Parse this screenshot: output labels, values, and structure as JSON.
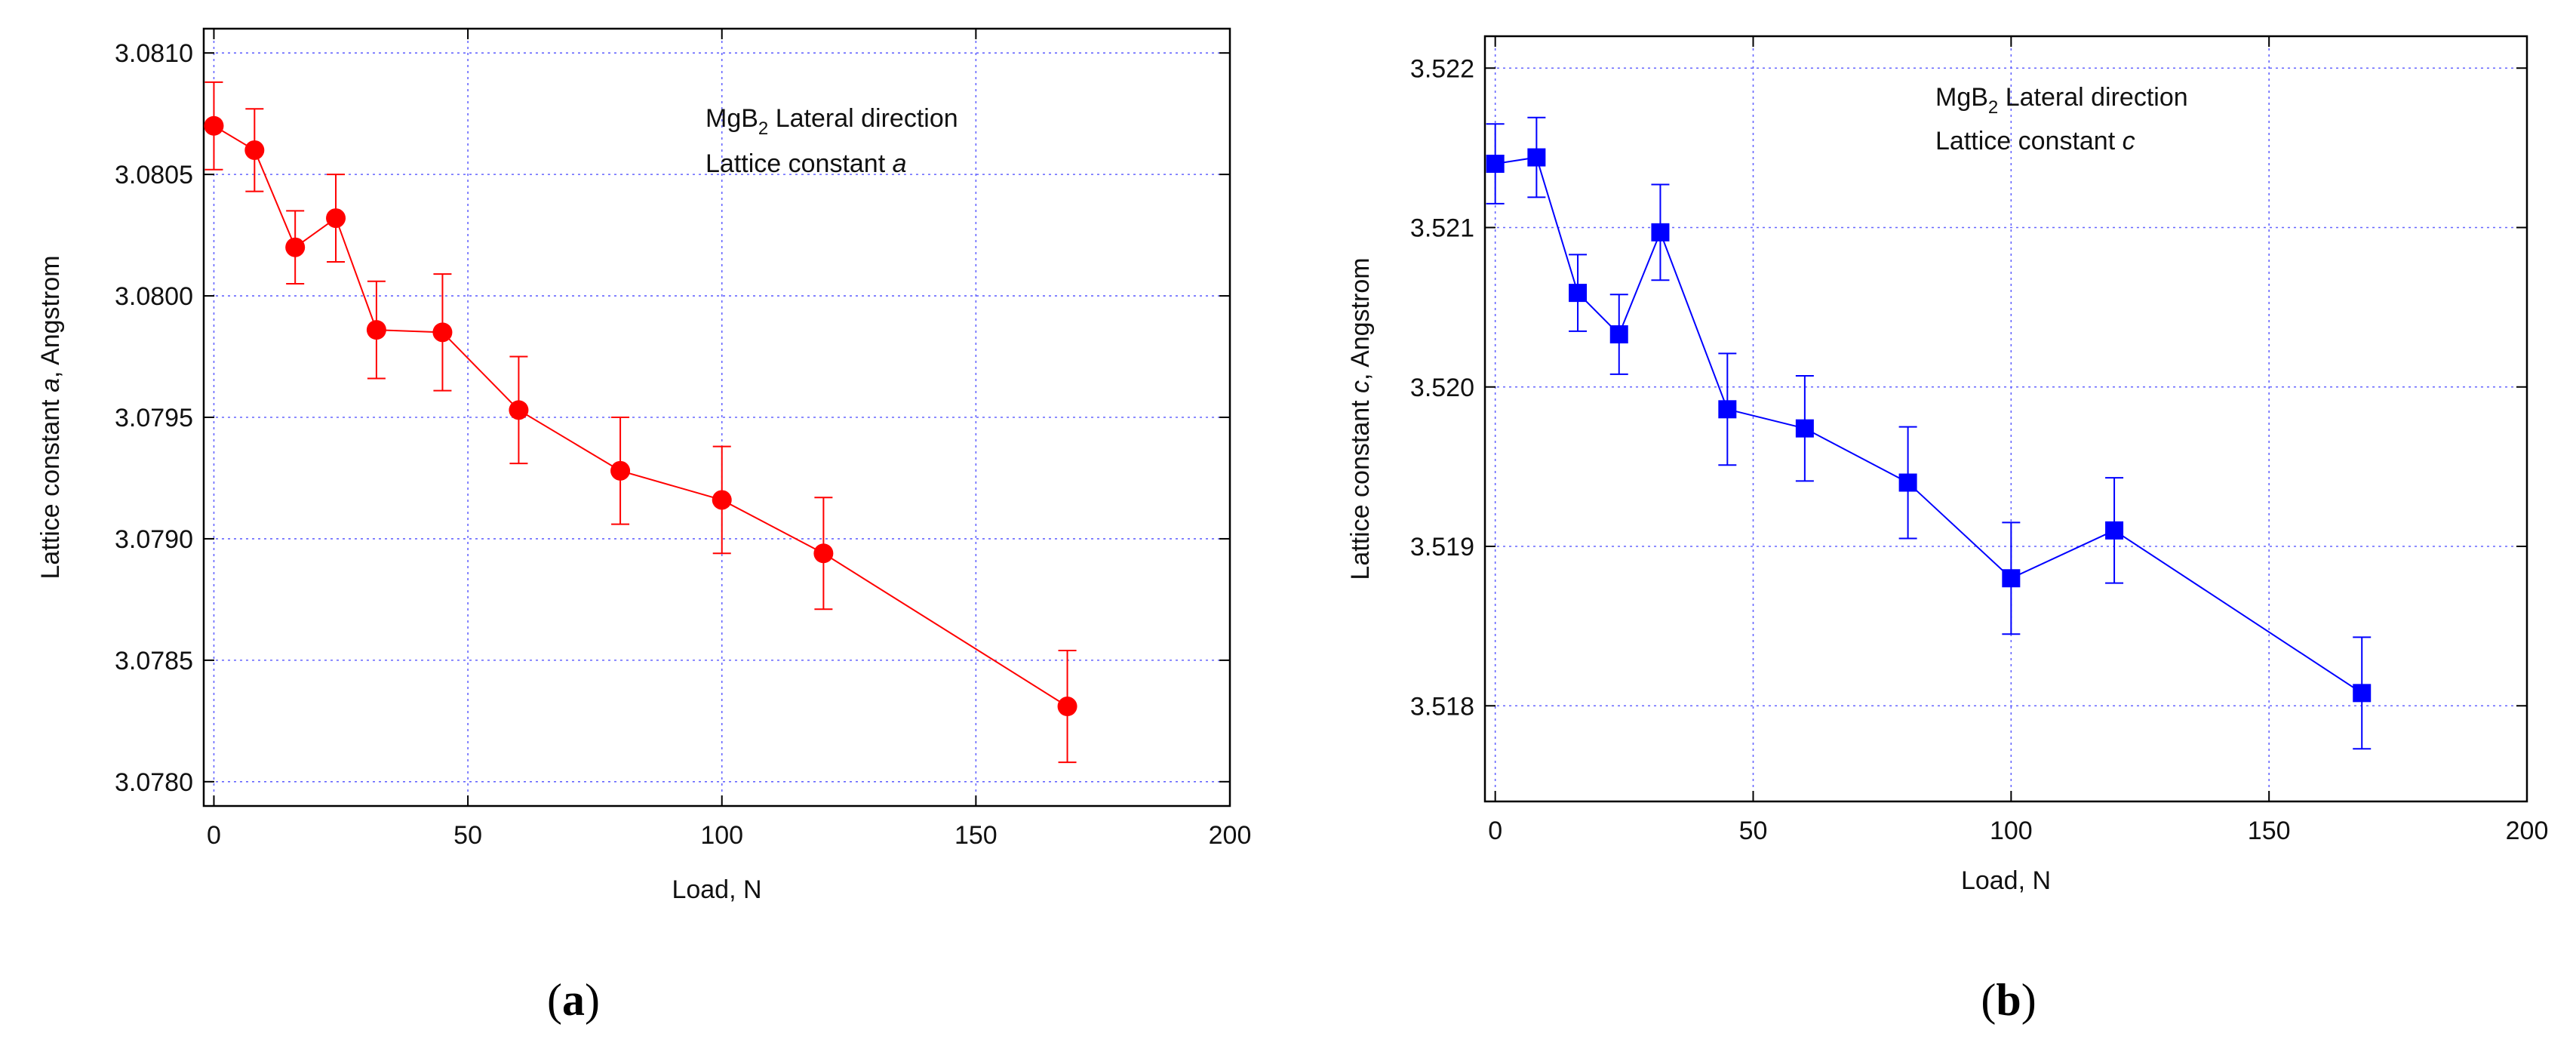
{
  "chart_data": [
    {
      "type": "line",
      "panel_label": {
        "open": "(",
        "letter": "a",
        "close": ")"
      },
      "annotation": {
        "line1": {
          "base": "MgB",
          "sub": "2",
          "rest": "  Lateral direction"
        },
        "line2": {
          "text": "Lattice constant ",
          "italic": "a"
        }
      },
      "xlabel": "Load, N",
      "ylabel": {
        "pre": "Lattice constant ",
        "italic": "a",
        "post": ", Angstrom"
      },
      "xlim": [
        -2,
        200
      ],
      "ylim": [
        3.0779,
        3.0811
      ],
      "x_ticks": [
        0,
        50,
        100,
        150,
        200
      ],
      "x_tick_labels": [
        "0",
        "50",
        "100",
        "150",
        "200"
      ],
      "y_ticks": [
        3.078,
        3.0785,
        3.079,
        3.0795,
        3.08,
        3.0805,
        3.081
      ],
      "y_tick_labels": [
        "3.0780",
        "3.0785",
        "3.0790",
        "3.0795",
        "3.0800",
        "3.0805",
        "3.0810"
      ],
      "grid": true,
      "series": [
        {
          "color": "#ff0000",
          "marker": "circle",
          "x": [
            0,
            8,
            16,
            24,
            32,
            45,
            60,
            80,
            100,
            120,
            168
          ],
          "y": [
            3.0807,
            3.0806,
            3.0802,
            3.08032,
            3.07986,
            3.07985,
            3.07953,
            3.07928,
            3.07916,
            3.07894,
            3.07831
          ],
          "err": [
            0.00018,
            0.00017,
            0.00015,
            0.00018,
            0.0002,
            0.00024,
            0.00022,
            0.00022,
            0.00022,
            0.00023,
            0.00023
          ]
        }
      ]
    },
    {
      "type": "line",
      "panel_label": {
        "open": "(",
        "letter": "b",
        "close": ")"
      },
      "annotation": {
        "line1": {
          "base": "MgB",
          "sub": "2",
          "rest": "  Lateral direction"
        },
        "line2": {
          "text": "Lattice constant ",
          "italic": "c"
        }
      },
      "xlabel": "Load, N",
      "ylabel": {
        "pre": "Lattice constant ",
        "italic": "c",
        "post": ", Angstrom"
      },
      "xlim": [
        -2,
        200
      ],
      "ylim": [
        3.5174,
        3.5222
      ],
      "x_ticks": [
        0,
        50,
        100,
        150,
        200
      ],
      "x_tick_labels": [
        "0",
        "50",
        "100",
        "150",
        "200"
      ],
      "y_ticks": [
        3.518,
        3.519,
        3.52,
        3.521,
        3.522
      ],
      "y_tick_labels": [
        "3.518",
        "3.519",
        "3.520",
        "3.521",
        "3.522"
      ],
      "grid": true,
      "series": [
        {
          "color": "#0000ff",
          "marker": "square",
          "x": [
            0,
            8,
            16,
            24,
            32,
            45,
            60,
            80,
            100,
            120,
            168
          ],
          "y": [
            3.5214,
            3.52144,
            3.52059,
            3.52033,
            3.52097,
            3.51986,
            3.51974,
            3.5194,
            3.5188,
            3.5191,
            3.51808
          ],
          "err": [
            0.00025,
            0.00025,
            0.00024,
            0.00025,
            0.0003,
            0.00035,
            0.00033,
            0.00035,
            0.00035,
            0.00033,
            0.00035
          ]
        }
      ]
    }
  ]
}
